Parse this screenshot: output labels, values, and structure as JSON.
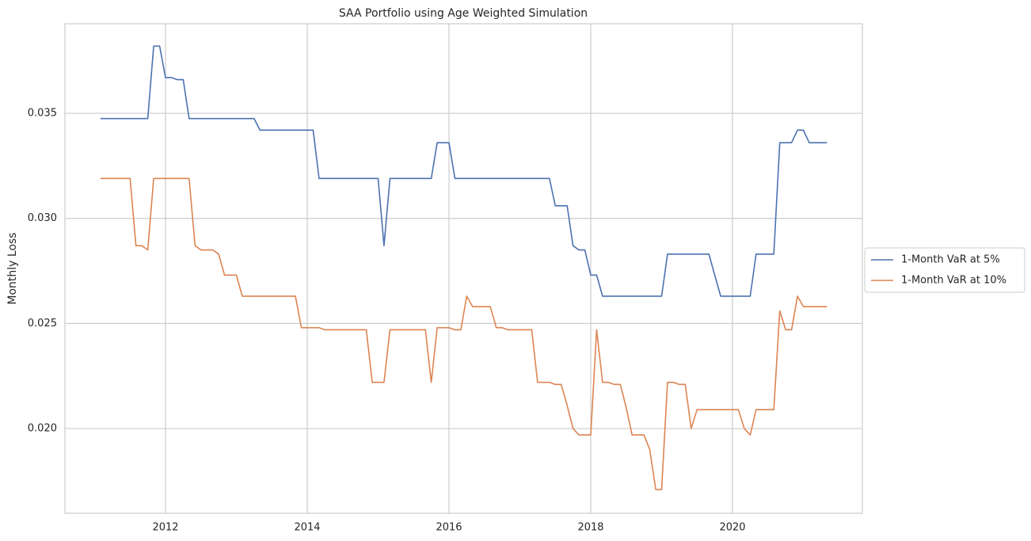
{
  "chart_data": {
    "type": "line",
    "title": "SAA Portfolio using Age Weighted Simulation",
    "y_label": "Monthly Loss",
    "x": [
      2011.083,
      2011.167,
      2011.25,
      2011.333,
      2011.417,
      2011.5,
      2011.583,
      2011.667,
      2011.75,
      2011.833,
      2011.917,
      2012.0,
      2012.083,
      2012.167,
      2012.25,
      2012.333,
      2012.417,
      2012.5,
      2012.583,
      2012.667,
      2012.75,
      2012.833,
      2012.917,
      2013.0,
      2013.083,
      2013.167,
      2013.25,
      2013.333,
      2013.417,
      2013.5,
      2013.583,
      2013.667,
      2013.75,
      2013.833,
      2013.917,
      2014.0,
      2014.083,
      2014.167,
      2014.25,
      2014.333,
      2014.417,
      2014.5,
      2014.583,
      2014.667,
      2014.75,
      2014.833,
      2014.917,
      2015.0,
      2015.083,
      2015.167,
      2015.25,
      2015.333,
      2015.417,
      2015.5,
      2015.583,
      2015.667,
      2015.75,
      2015.833,
      2015.917,
      2016.0,
      2016.083,
      2016.167,
      2016.25,
      2016.333,
      2016.417,
      2016.5,
      2016.583,
      2016.667,
      2016.75,
      2016.833,
      2016.917,
      2017.0,
      2017.083,
      2017.167,
      2017.25,
      2017.333,
      2017.417,
      2017.5,
      2017.583,
      2017.667,
      2017.75,
      2017.833,
      2017.917,
      2018.0,
      2018.083,
      2018.167,
      2018.25,
      2018.333,
      2018.417,
      2018.5,
      2018.583,
      2018.667,
      2018.75,
      2018.833,
      2018.917,
      2019.0,
      2019.083,
      2019.167,
      2019.25,
      2019.333,
      2019.417,
      2019.5,
      2019.583,
      2019.667,
      2019.75,
      2019.833,
      2019.917,
      2020.0,
      2020.083,
      2020.167,
      2020.25,
      2020.333,
      2020.417,
      2020.5,
      2020.583,
      2020.667,
      2020.75,
      2020.833,
      2020.917,
      2021.0,
      2021.083,
      2021.167,
      2021.25,
      2021.333
    ],
    "series": [
      {
        "name": "1-Month VaR at 5%",
        "color": "#4c72b0",
        "values": [
          0.03475,
          0.03475,
          0.03475,
          0.03475,
          0.03475,
          0.03475,
          0.03475,
          0.03475,
          0.03475,
          0.0382,
          0.0382,
          0.0367,
          0.0367,
          0.0366,
          0.0366,
          0.03475,
          0.03475,
          0.03475,
          0.03475,
          0.03475,
          0.03475,
          0.03475,
          0.03475,
          0.03475,
          0.03475,
          0.03475,
          0.03475,
          0.0342,
          0.0342,
          0.0342,
          0.0342,
          0.0342,
          0.0342,
          0.0342,
          0.0342,
          0.0342,
          0.0342,
          0.0319,
          0.0319,
          0.0319,
          0.0319,
          0.0319,
          0.0319,
          0.0319,
          0.0319,
          0.0319,
          0.0319,
          0.0319,
          0.0287,
          0.0319,
          0.0319,
          0.0319,
          0.0319,
          0.0319,
          0.0319,
          0.0319,
          0.0319,
          0.0336,
          0.0336,
          0.0336,
          0.0319,
          0.0319,
          0.0319,
          0.0319,
          0.0319,
          0.0319,
          0.0319,
          0.0319,
          0.0319,
          0.0319,
          0.0319,
          0.0319,
          0.0319,
          0.0319,
          0.0319,
          0.0319,
          0.0319,
          0.0306,
          0.0306,
          0.0306,
          0.0287,
          0.0285,
          0.0285,
          0.0273,
          0.0273,
          0.0263,
          0.0263,
          0.0263,
          0.0263,
          0.0263,
          0.0263,
          0.0263,
          0.0263,
          0.0263,
          0.0263,
          0.0263,
          0.0283,
          0.0283,
          0.0283,
          0.0283,
          0.0283,
          0.0283,
          0.0283,
          0.0283,
          0.0273,
          0.0263,
          0.0263,
          0.0263,
          0.0263,
          0.0263,
          0.0263,
          0.0283,
          0.0283,
          0.0283,
          0.0283,
          0.0336,
          0.0336,
          0.0336,
          0.0342,
          0.0342,
          0.0336,
          0.0336,
          0.0336,
          0.0336
        ]
      },
      {
        "name": "1-Month VaR at 10%",
        "color": "#dd8452",
        "values": [
          0.0319,
          0.0319,
          0.0319,
          0.0319,
          0.0319,
          0.0319,
          0.0287,
          0.0287,
          0.0285,
          0.0319,
          0.0319,
          0.0319,
          0.0319,
          0.0319,
          0.0319,
          0.0319,
          0.0287,
          0.0285,
          0.0285,
          0.0285,
          0.0283,
          0.0273,
          0.0273,
          0.0273,
          0.0263,
          0.0263,
          0.0263,
          0.0263,
          0.0263,
          0.0263,
          0.0263,
          0.0263,
          0.0263,
          0.0263,
          0.0248,
          0.0248,
          0.0248,
          0.0248,
          0.0247,
          0.0247,
          0.0247,
          0.0247,
          0.0247,
          0.0247,
          0.0247,
          0.0247,
          0.0222,
          0.0222,
          0.0222,
          0.0247,
          0.0247,
          0.0247,
          0.0247,
          0.0247,
          0.0247,
          0.0247,
          0.0222,
          0.0248,
          0.0248,
          0.0248,
          0.0247,
          0.0247,
          0.0263,
          0.0258,
          0.0258,
          0.0258,
          0.0258,
          0.0248,
          0.0248,
          0.0247,
          0.0247,
          0.0247,
          0.0247,
          0.0247,
          0.0222,
          0.0222,
          0.0222,
          0.0221,
          0.0221,
          0.0211,
          0.02,
          0.0197,
          0.0197,
          0.0197,
          0.0247,
          0.0222,
          0.0222,
          0.0221,
          0.0221,
          0.021,
          0.0197,
          0.0197,
          0.0197,
          0.019,
          0.0171,
          0.0171,
          0.0222,
          0.0222,
          0.0221,
          0.0221,
          0.02,
          0.0209,
          0.0209,
          0.0209,
          0.0209,
          0.0209,
          0.0209,
          0.0209,
          0.0209,
          0.02,
          0.0197,
          0.0209,
          0.0209,
          0.0209,
          0.0209,
          0.0256,
          0.0247,
          0.0247,
          0.0263,
          0.0258,
          0.0258,
          0.0258,
          0.0258,
          0.0258
        ]
      }
    ],
    "xlim": [
      2010.581,
      2021.832
    ],
    "xticks": [
      2012,
      2014,
      2016,
      2018,
      2020
    ],
    "ylim": [
      0.01597,
      0.03926
    ],
    "yticks": [
      {
        "value": 0.02,
        "label": "0.020"
      },
      {
        "value": 0.025,
        "label": "0.025"
      },
      {
        "value": 0.03,
        "label": "0.030"
      },
      {
        "value": 0.035,
        "label": "0.035"
      }
    ],
    "grid": true,
    "legend": "right"
  }
}
